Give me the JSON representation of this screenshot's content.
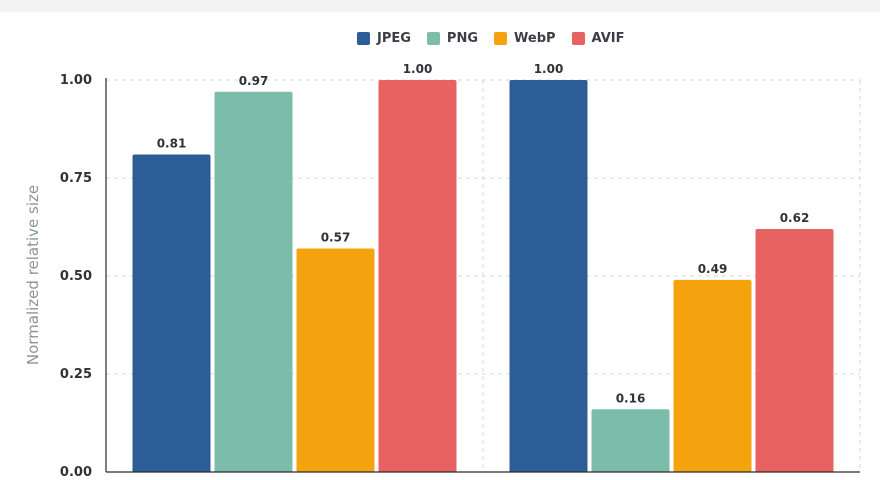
{
  "chart_data": {
    "type": "bar",
    "ylabel": "Normalized relative size",
    "ylim": [
      0,
      1
    ],
    "yticks": [
      0,
      0.25,
      0.5,
      0.75,
      1
    ],
    "ytick_labels": [
      "0.00",
      "0.25",
      "0.50",
      "0.75",
      "1.00"
    ],
    "grid": true,
    "legend_position": "top-center",
    "categories": [
      "",
      ""
    ],
    "series": [
      {
        "name": "JPEG",
        "color": "#2c5d96",
        "values": [
          0.81,
          1.0
        ],
        "labels": [
          "0.81",
          "1.00"
        ]
      },
      {
        "name": "PNG",
        "color": "#7cbcab",
        "values": [
          0.97,
          0.16
        ],
        "labels": [
          "0.97",
          "0.16"
        ]
      },
      {
        "name": "WebP",
        "color": "#f4a20d",
        "values": [
          0.57,
          0.49
        ],
        "labels": [
          "0.57",
          "0.49"
        ]
      },
      {
        "name": "AVIF",
        "color": "#e86262",
        "values": [
          1.0,
          0.62
        ],
        "labels": [
          "1.00",
          "0.62"
        ]
      }
    ]
  }
}
